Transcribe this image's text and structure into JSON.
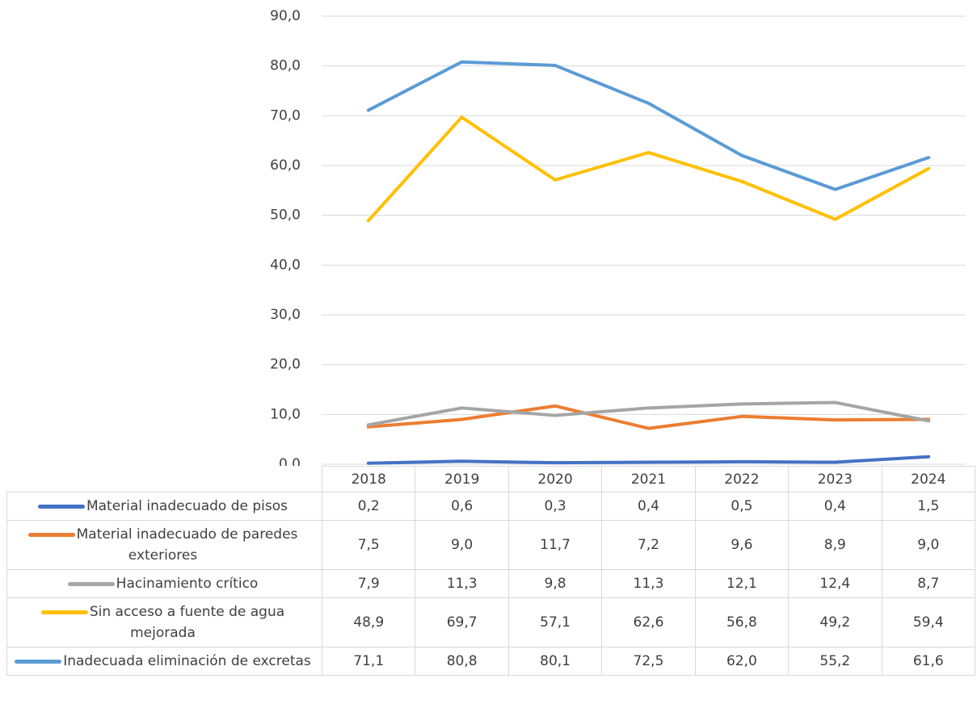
{
  "chart_data": {
    "type": "line",
    "categories": [
      "2018",
      "2019",
      "2020",
      "2021",
      "2022",
      "2023",
      "2024"
    ],
    "series": [
      {
        "name": "Material inadecuado de pisos",
        "color": "#4472c4",
        "values": [
          0.2,
          0.6,
          0.3,
          0.4,
          0.5,
          0.4,
          1.5
        ],
        "value_labels": [
          "0,2",
          "0,6",
          "0,3",
          "0,4",
          "0,5",
          "0,4",
          "1,5"
        ]
      },
      {
        "name": "Material inadecuado de paredes exteriores",
        "color": "#ed7d31",
        "values": [
          7.5,
          9.0,
          11.7,
          7.2,
          9.6,
          8.9,
          9.0
        ],
        "value_labels": [
          "7,5",
          "9,0",
          "11,7",
          "7,2",
          "9,6",
          "8,9",
          "9,0"
        ]
      },
      {
        "name": "Hacinamiento crítico",
        "color": "#a5a5a5",
        "values": [
          7.9,
          11.3,
          9.8,
          11.3,
          12.1,
          12.4,
          8.7
        ],
        "value_labels": [
          "7,9",
          "11,3",
          "9,8",
          "11,3",
          "12,1",
          "12,4",
          "8,7"
        ]
      },
      {
        "name": "Sin acceso a fuente de agua mejorada",
        "color": "#ffc000",
        "values": [
          48.9,
          69.7,
          57.1,
          62.6,
          56.8,
          49.2,
          59.4
        ],
        "value_labels": [
          "48,9",
          "69,7",
          "57,1",
          "62,6",
          "56,8",
          "49,2",
          "59,4"
        ]
      },
      {
        "name": "Inadecuada eliminación de excretas",
        "color": "#5b9bd5",
        "values": [
          71.1,
          80.8,
          80.1,
          72.5,
          62.0,
          55.2,
          61.6
        ],
        "value_labels": [
          "71,1",
          "80,8",
          "80,1",
          "72,5",
          "62,0",
          "55,2",
          "61,6"
        ]
      }
    ],
    "ylim": [
      0,
      90
    ],
    "yticks": [
      {
        "value": 0,
        "label": "0,0"
      },
      {
        "value": 10,
        "label": "10,0"
      },
      {
        "value": 20,
        "label": "20,0"
      },
      {
        "value": 30,
        "label": "30,0"
      },
      {
        "value": 40,
        "label": "40,0"
      },
      {
        "value": 50,
        "label": "50,0"
      },
      {
        "value": 60,
        "label": "60,0"
      },
      {
        "value": 70,
        "label": "70,0"
      },
      {
        "value": 80,
        "label": "80,0"
      },
      {
        "value": 90,
        "label": "90,0"
      }
    ],
    "grid": true
  }
}
